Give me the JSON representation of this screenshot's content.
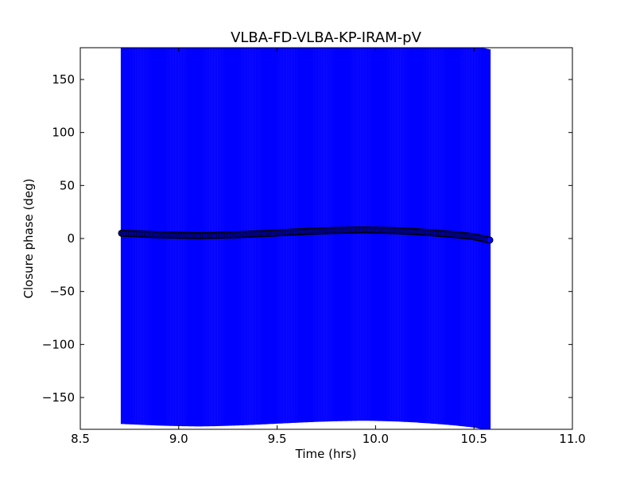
{
  "chart_data": {
    "type": "scatter",
    "title": "VLBA-FD-VLBA-KP-IRAM-pV",
    "xlabel": "Time (hrs)",
    "ylabel": "Closure phase (deg)",
    "xlim": [
      8.5,
      11.0
    ],
    "ylim": [
      -180,
      180
    ],
    "xticks": [
      8.5,
      9.0,
      9.5,
      10.0,
      10.5,
      11.0
    ],
    "xtick_labels": [
      "8.5",
      "9.0",
      "9.5",
      "10.0",
      "10.5",
      "11.0"
    ],
    "yticks": [
      -150,
      -100,
      -50,
      0,
      50,
      100,
      150
    ],
    "ytick_labels": [
      "−150",
      "−100",
      "−50",
      "0",
      "50",
      "100",
      "150"
    ],
    "grid": false,
    "legend": "none",
    "errorbar_color": "#0000ff",
    "marker_color": "#0000ff",
    "marker_edge_color": "#000000",
    "series": [
      {
        "x": [
          8.71,
          8.8,
          8.9,
          9.0,
          9.1,
          9.2,
          9.3,
          9.4,
          9.5,
          9.6,
          9.7,
          9.8,
          9.9,
          9.95,
          10.0,
          10.1,
          10.2,
          10.3,
          10.4,
          10.5,
          10.58
        ],
        "y": [
          5.0,
          4.3,
          3.5,
          3.0,
          2.7,
          3.0,
          3.6,
          4.4,
          5.3,
          6.2,
          7.0,
          7.6,
          8.0,
          8.1,
          7.9,
          7.4,
          6.5,
          5.2,
          3.7,
          1.7,
          -1.5
        ],
        "yerr": [
          180,
          180,
          180,
          180,
          180,
          180,
          180,
          180,
          180,
          180,
          180,
          180,
          180,
          180,
          180,
          180,
          180,
          180,
          180,
          180,
          180
        ]
      }
    ]
  }
}
